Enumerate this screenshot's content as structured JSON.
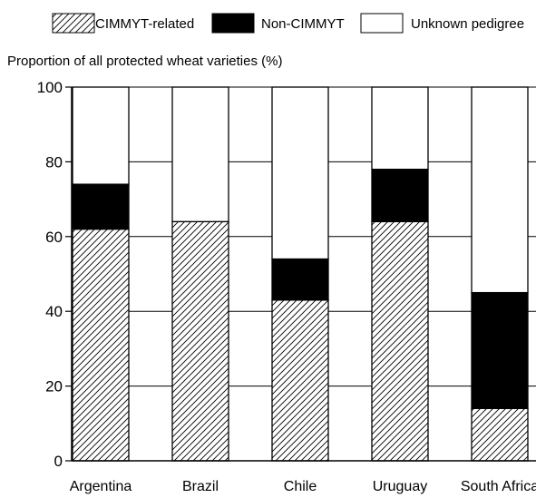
{
  "chart_data": {
    "type": "bar",
    "stacked": true,
    "title": "",
    "ylabel": "Proportion of all protected wheat varieties (%)",
    "xlabel": "",
    "ylim": [
      0,
      100
    ],
    "yticks": [
      0,
      20,
      40,
      60,
      80,
      100
    ],
    "grid": "horizontal",
    "legend_position": "top",
    "categories": [
      "Argentina",
      "Brazil",
      "Chile",
      "Uruguay",
      "South Africa"
    ],
    "series": [
      {
        "name": "CIMMYT-related",
        "values": [
          62,
          64,
          43,
          64,
          14
        ],
        "fill": "hatch"
      },
      {
        "name": "Non-CIMMYT",
        "values": [
          12,
          0,
          11,
          14,
          31
        ],
        "fill": "#000000"
      },
      {
        "name": "Unknown pedigree",
        "values": [
          26,
          36,
          46,
          22,
          55
        ],
        "fill": "#ffffff"
      }
    ]
  }
}
